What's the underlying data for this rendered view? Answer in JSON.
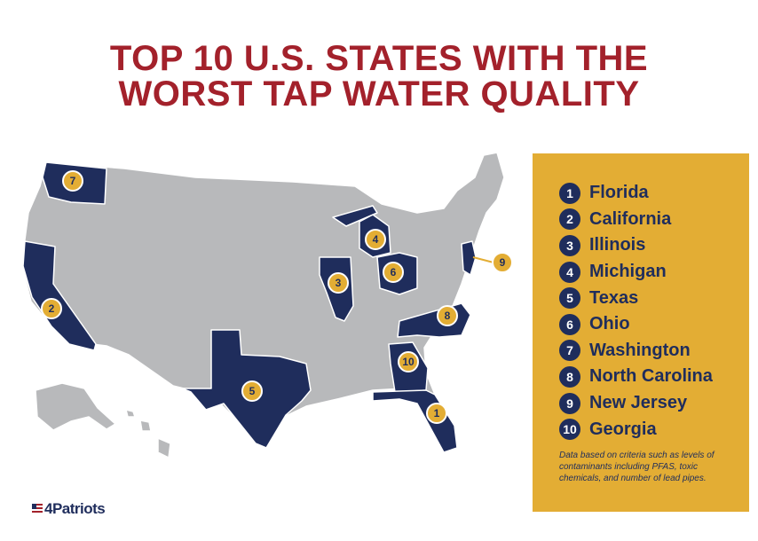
{
  "title": {
    "line1": "TOP 10 U.S. STATES WITH THE",
    "line2": "WORST TAP WATER QUALITY"
  },
  "colors": {
    "title": "#a3212b",
    "highlight_state": "#1f2d5c",
    "other_state": "#b8b9bb",
    "panel": "#e3ad34",
    "pin": "#e3ad34"
  },
  "rankings": [
    {
      "rank": "1",
      "state": "Florida"
    },
    {
      "rank": "2",
      "state": "California"
    },
    {
      "rank": "3",
      "state": "Illinois"
    },
    {
      "rank": "4",
      "state": "Michigan"
    },
    {
      "rank": "5",
      "state": "Texas"
    },
    {
      "rank": "6",
      "state": "Ohio"
    },
    {
      "rank": "7",
      "state": "Washington"
    },
    {
      "rank": "8",
      "state": "North Carolina"
    },
    {
      "rank": "9",
      "state": "New Jersey"
    },
    {
      "rank": "10",
      "state": "Georgia"
    }
  ],
  "map_pins": [
    {
      "rank": "1",
      "state": "Florida"
    },
    {
      "rank": "2",
      "state": "California"
    },
    {
      "rank": "3",
      "state": "Illinois"
    },
    {
      "rank": "4",
      "state": "Michigan"
    },
    {
      "rank": "5",
      "state": "Texas"
    },
    {
      "rank": "6",
      "state": "Ohio"
    },
    {
      "rank": "7",
      "state": "Washington"
    },
    {
      "rank": "8",
      "state": "North Carolina"
    },
    {
      "rank": "9",
      "state": "New Jersey"
    },
    {
      "rank": "10",
      "state": "Georgia"
    }
  ],
  "note": "Data based on criteria such as levels of contaminants including PFAS, toxic chemicals, and number of lead pipes.",
  "logo": {
    "text": "4Patriots",
    "icon": "us-flag-icon"
  }
}
